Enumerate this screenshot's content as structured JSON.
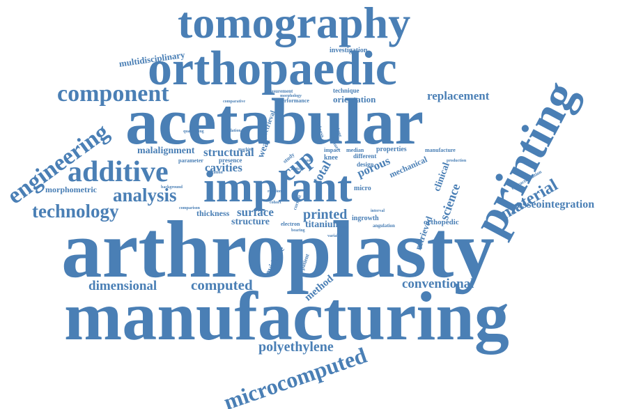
{
  "color": "#4a7fb5",
  "words": [
    {
      "text": "tomography"
    },
    {
      "text": "orthopaedic"
    },
    {
      "text": "multidisciplinary"
    },
    {
      "text": "investigation"
    },
    {
      "text": "component"
    },
    {
      "text": "acetabular"
    },
    {
      "text": "replacement"
    },
    {
      "text": "printing"
    },
    {
      "text": "measurement"
    },
    {
      "text": "technique"
    },
    {
      "text": "performance"
    },
    {
      "text": "orientation"
    },
    {
      "text": "comparative"
    },
    {
      "text": "engineering"
    },
    {
      "text": "validation"
    },
    {
      "text": "retrieval"
    },
    {
      "text": "roundness"
    },
    {
      "text": "quantifying"
    },
    {
      "text": "malalignment"
    },
    {
      "text": "structural"
    },
    {
      "text": "cup"
    },
    {
      "text": "wear"
    },
    {
      "text": "study"
    },
    {
      "text": "total"
    },
    {
      "text": "impact"
    },
    {
      "text": "median"
    },
    {
      "text": "properties"
    },
    {
      "text": "manufacture"
    },
    {
      "text": "additive"
    },
    {
      "text": "parameter"
    },
    {
      "text": "presence"
    },
    {
      "text": "cavities"
    },
    {
      "text": "knee"
    },
    {
      "text": "porous"
    },
    {
      "text": "mechanical"
    },
    {
      "text": "clinical"
    },
    {
      "text": "implant"
    },
    {
      "text": "material"
    },
    {
      "text": "characterization"
    },
    {
      "text": "micro"
    },
    {
      "text": "science"
    },
    {
      "text": "morphometric"
    },
    {
      "text": "analysis"
    },
    {
      "text": "background"
    },
    {
      "text": "osseointegration"
    },
    {
      "text": "technology"
    },
    {
      "text": "printed"
    },
    {
      "text": "thickness"
    },
    {
      "text": "surface"
    },
    {
      "text": "structure"
    },
    {
      "text": "titanium"
    },
    {
      "text": "ingrowth"
    },
    {
      "text": "electron"
    },
    {
      "text": "angulation"
    },
    {
      "text": "retrieved"
    },
    {
      "text": "orthopedic"
    },
    {
      "text": "arthroplasty"
    },
    {
      "text": "evidence"
    },
    {
      "text": "method"
    },
    {
      "text": "dimensional"
    },
    {
      "text": "computed"
    },
    {
      "text": "conventional"
    },
    {
      "text": "manufacturing"
    },
    {
      "text": "polyethylene"
    },
    {
      "text": "microcomputed"
    },
    {
      "text": "different"
    },
    {
      "text": "design"
    },
    {
      "text": "bone"
    },
    {
      "text": "lattice"
    },
    {
      "text": "patient"
    },
    {
      "text": "current"
    },
    {
      "text": "fixation"
    },
    {
      "text": "morphology"
    },
    {
      "text": "production"
    },
    {
      "text": "comparison"
    },
    {
      "text": "revision"
    },
    {
      "text": "machine"
    },
    {
      "text": "variable"
    },
    {
      "text": "interval"
    },
    {
      "text": "cohort"
    },
    {
      "text": "volume"
    },
    {
      "text": "region"
    },
    {
      "text": "bearing"
    },
    {
      "text": "feature"
    }
  ]
}
